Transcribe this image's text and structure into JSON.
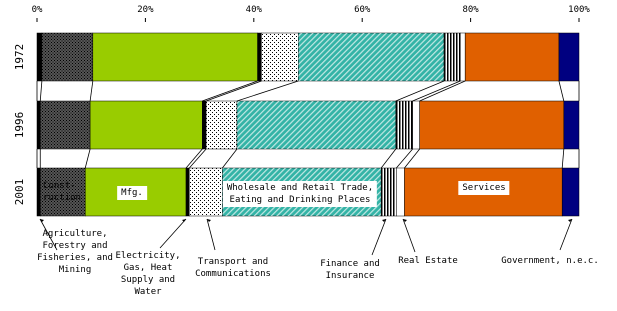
{
  "chart_data": {
    "type": "stacked-bar-100",
    "orientation": "horizontal",
    "categories": [
      "1972",
      "1996",
      "2001"
    ],
    "xlim": [
      0,
      100
    ],
    "xticks": [
      {
        "value": 0,
        "label": "0%"
      },
      {
        "value": 20,
        "label": "20%"
      },
      {
        "value": 40,
        "label": "40%"
      },
      {
        "value": 60,
        "label": "60%"
      },
      {
        "value": 80,
        "label": "80%"
      },
      {
        "value": 100,
        "label": "100%"
      }
    ],
    "series": [
      {
        "name": "Agriculture,\nForestry and\nFisheries, and\nMining",
        "color": "#000000",
        "values": [
          0.9,
          0.6,
          0.6
        ]
      },
      {
        "name": "Const-\nruction",
        "color": "#555555",
        "values": [
          9.4,
          9.2,
          8.3
        ]
      },
      {
        "name": "Mfg.",
        "color": "#99cc00",
        "values": [
          30.4,
          20.7,
          18.6
        ]
      },
      {
        "name": "Electricity,\nGas, Heat\nSupply and\nWater",
        "color": "#000000",
        "values": [
          0.7,
          0.7,
          0.6
        ]
      },
      {
        "name": "Transport and\nCommunications",
        "color": "#ffffff",
        "values": [
          6.8,
          5.7,
          6.1
        ]
      },
      {
        "name": "Wholesale and Retail Trade,\nEating and Drinking Places",
        "color": "#33b3a6",
        "values": [
          26.9,
          29.3,
          29.3
        ]
      },
      {
        "name": "Finance and\nInsurance",
        "color": "#ffffff",
        "values": [
          3.0,
          3.1,
          2.8
        ]
      },
      {
        "name": "Real Estate",
        "color": "#ffffff",
        "values": [
          0.9,
          1.3,
          1.5
        ]
      },
      {
        "name": "Services",
        "color": "#e06000",
        "values": [
          17.3,
          26.6,
          29.1
        ]
      },
      {
        "name": "Government, n.e.c.",
        "color": "#000080",
        "values": [
          3.7,
          2.8,
          3.1
        ]
      }
    ]
  }
}
